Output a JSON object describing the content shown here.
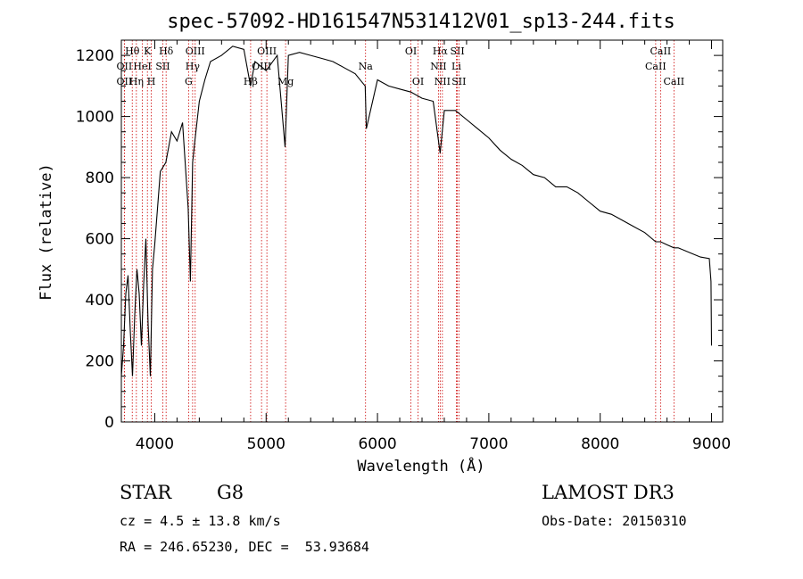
{
  "chart_data": {
    "type": "line",
    "title": "spec-57092-HD161547N531412V01_sp13-244.fits",
    "xlabel": "Wavelength (Å)",
    "ylabel": "Flux (relative)",
    "xlim": [
      3700,
      9100
    ],
    "ylim": [
      0,
      1250
    ],
    "xticks": [
      4000,
      5000,
      6000,
      7000,
      8000,
      9000
    ],
    "yticks": [
      0,
      200,
      400,
      600,
      800,
      1000,
      1200
    ],
    "grid": false,
    "series": [
      {
        "name": "spectrum",
        "x": [
          3700,
          3720,
          3740,
          3760,
          3780,
          3800,
          3820,
          3840,
          3860,
          3880,
          3900,
          3920,
          3940,
          3960,
          3980,
          4000,
          4050,
          4100,
          4150,
          4200,
          4250,
          4300,
          4320,
          4340,
          4360,
          4400,
          4450,
          4500,
          4600,
          4700,
          4800,
          4860,
          4900,
          5000,
          5100,
          5170,
          5200,
          5300,
          5400,
          5500,
          5600,
          5700,
          5800,
          5890,
          5900,
          6000,
          6100,
          6200,
          6300,
          6400,
          6500,
          6563,
          6600,
          6700,
          6800,
          6900,
          7000,
          7100,
          7200,
          7300,
          7400,
          7500,
          7600,
          7700,
          7800,
          7900,
          8000,
          8100,
          8200,
          8300,
          8400,
          8498,
          8542,
          8600,
          8662,
          8700,
          8800,
          8900,
          8980,
          8995,
          9000
        ],
        "values": [
          150,
          250,
          420,
          480,
          300,
          150,
          350,
          500,
          420,
          250,
          450,
          600,
          320,
          150,
          500,
          580,
          820,
          850,
          950,
          920,
          980,
          700,
          460,
          850,
          920,
          1050,
          1120,
          1180,
          1200,
          1230,
          1220,
          1100,
          1180,
          1150,
          1200,
          900,
          1200,
          1210,
          1200,
          1190,
          1180,
          1160,
          1140,
          1100,
          960,
          1120,
          1100,
          1090,
          1080,
          1060,
          1050,
          880,
          1020,
          1020,
          990,
          960,
          930,
          890,
          860,
          840,
          810,
          800,
          770,
          770,
          750,
          720,
          690,
          680,
          660,
          640,
          620,
          590,
          590,
          580,
          570,
          570,
          555,
          540,
          535,
          460,
          250
        ]
      }
    ],
    "line_marks": [
      {
        "label": "Hθ",
        "x": 3798,
        "row": 1
      },
      {
        "label": "K",
        "x": 3934,
        "row": 1
      },
      {
        "label": "Hδ",
        "x": 4102,
        "row": 1
      },
      {
        "label": "OII",
        "x": 3727,
        "row": 2
      },
      {
        "label": "HeI",
        "x": 3889,
        "row": 2
      },
      {
        "label": "SII",
        "x": 4072,
        "row": 2
      },
      {
        "label": "OII",
        "x": 3727,
        "row": 3
      },
      {
        "label": "Hη",
        "x": 3835,
        "row": 3
      },
      {
        "label": "H",
        "x": 3969,
        "row": 3
      },
      {
        "label": "OIII",
        "x": 4363,
        "row": 1
      },
      {
        "label": "Hγ",
        "x": 4340,
        "row": 2
      },
      {
        "label": "G",
        "x": 4304,
        "row": 3
      },
      {
        "label": "OIII",
        "x": 5007,
        "row": 1
      },
      {
        "label": "OIII",
        "x": 4959,
        "row": 2
      },
      {
        "label": "Hβ",
        "x": 4861,
        "row": 3
      },
      {
        "label": "Mg",
        "x": 5175,
        "row": 3
      },
      {
        "label": "Na",
        "x": 5893,
        "row": 2
      },
      {
        "label": "OI",
        "x": 6300,
        "row": 1
      },
      {
        "label": "OI",
        "x": 6364,
        "row": 3
      },
      {
        "label": "Hα",
        "x": 6563,
        "row": 1
      },
      {
        "label": "SII",
        "x": 6717,
        "row": 1
      },
      {
        "label": "NII",
        "x": 6548,
        "row": 2
      },
      {
        "label": "Li",
        "x": 6708,
        "row": 2
      },
      {
        "label": "NII",
        "x": 6583,
        "row": 3
      },
      {
        "label": "SII",
        "x": 6731,
        "row": 3
      },
      {
        "label": "CaII",
        "x": 8542,
        "row": 1
      },
      {
        "label": "CaII",
        "x": 8498,
        "row": 2
      },
      {
        "label": "CaII",
        "x": 8662,
        "row": 3
      }
    ]
  },
  "info": {
    "object_class": "STAR",
    "subclass": "G8",
    "survey": "LAMOST DR3",
    "cz": "cz = 4.5 ± 13.8 km/s",
    "obs_date": "Obs-Date: 20150310",
    "coords": "RA = 246.65230, DEC =  53.93684"
  },
  "colors": {
    "axes": "#000000",
    "line_marker": "#cc0000",
    "spectrum": "#000000"
  }
}
